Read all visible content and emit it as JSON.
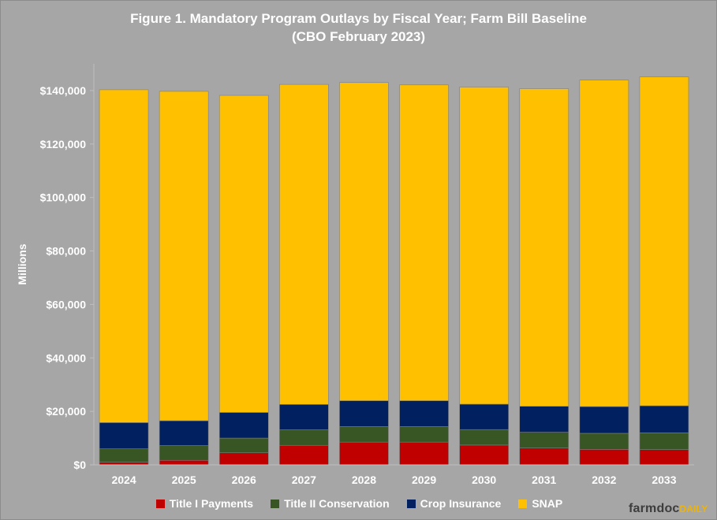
{
  "title_line1": "Figure 1. Mandatory Program Outlays by Fiscal Year; Farm Bill Baseline",
  "title_line2": "(CBO February 2023)",
  "logo": {
    "part1": "farmdoc",
    "part2": "DAILY"
  },
  "chart_data": {
    "type": "bar",
    "stacked": true,
    "title": "Figure 1. Mandatory Program Outlays by Fiscal Year; Farm Bill Baseline (CBO February 2023)",
    "xlabel": "",
    "ylabel": "Millions",
    "ylim": [
      0,
      150000
    ],
    "yticks": [
      0,
      20000,
      40000,
      60000,
      80000,
      100000,
      120000,
      140000
    ],
    "ytick_labels": [
      "$0",
      "$20,000",
      "$40,000",
      "$60,000",
      "$80,000",
      "$100,000",
      "$120,000",
      "$140,000"
    ],
    "categories": [
      "2024",
      "2025",
      "2026",
      "2027",
      "2028",
      "2029",
      "2030",
      "2031",
      "2032",
      "2033"
    ],
    "series": [
      {
        "name": "Title I Payments",
        "color": "#c00000",
        "values": [
          1000,
          1700,
          4500,
          7300,
          8500,
          8500,
          7400,
          6300,
          5800,
          5700
        ]
      },
      {
        "name": "Title II Conservation",
        "color": "#375623",
        "values": [
          5000,
          5500,
          5500,
          5800,
          5800,
          5800,
          5800,
          5900,
          6000,
          6300
        ]
      },
      {
        "name": "Crop Insurance",
        "color": "#002060",
        "values": [
          9800,
          9300,
          9600,
          9500,
          9700,
          9700,
          9500,
          9700,
          10000,
          10100
        ]
      },
      {
        "name": "SNAP",
        "color": "#ffc000",
        "values": [
          124500,
          123200,
          118600,
          119700,
          119000,
          118100,
          118600,
          118800,
          122100,
          123000
        ]
      }
    ],
    "grid": false,
    "legend_position": "bottom"
  }
}
